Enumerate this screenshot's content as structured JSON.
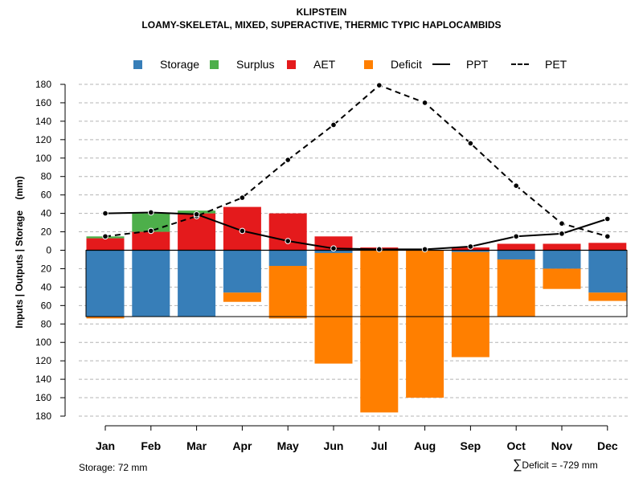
{
  "title": "KLIPSTEIN",
  "subtitle": "LOAMY-SKELETAL, MIXED, SUPERACTIVE, THERMIC TYPIC HAPLOCAMBIDS",
  "legend": [
    {
      "label": "Storage",
      "kind": "box",
      "color": "#377eb8"
    },
    {
      "label": "Surplus",
      "kind": "box",
      "color": "#4daf4a"
    },
    {
      "label": "AET",
      "kind": "box",
      "color": "#e41a1c"
    },
    {
      "label": "Deficit",
      "kind": "box",
      "color": "#ff7f00"
    },
    {
      "label": "PPT",
      "kind": "solid",
      "color": "#000000"
    },
    {
      "label": "PET",
      "kind": "dashed",
      "color": "#000000"
    }
  ],
  "footer": {
    "storage": "Storage: 72 mm",
    "deficit_symbol": "∑",
    "deficit": "Deficit = -729 mm"
  },
  "chart_data": {
    "type": "bar",
    "title": "KLIPSTEIN",
    "subtitle": "LOAMY-SKELETAL, MIXED, SUPERACTIVE, THERMIC TYPIC HAPLOCAMBIDS",
    "ylabel": "Inputs | Outputs | Storage    (mm)",
    "xlabel": "",
    "ylim": [
      -180,
      180
    ],
    "y_ticks": [
      180,
      160,
      140,
      120,
      100,
      80,
      60,
      40,
      20,
      0,
      -20,
      -40,
      -60,
      -80,
      -100,
      -120,
      -140,
      -160,
      -180
    ],
    "y_tick_labels": [
      "180",
      "160",
      "140",
      "120",
      "100",
      "80",
      "60",
      "40",
      "20",
      "0",
      "20",
      "40",
      "60",
      "80",
      "100",
      "120",
      "140",
      "160",
      "180"
    ],
    "grid": true,
    "storage_capacity": 72,
    "categories": [
      "Jan",
      "Feb",
      "Mar",
      "Apr",
      "May",
      "Jun",
      "Jul",
      "Aug",
      "Sep",
      "Oct",
      "Nov",
      "Dec"
    ],
    "series": [
      {
        "name": "AET",
        "color": "#e41a1c",
        "values": [
          13,
          20,
          40,
          47,
          40,
          15,
          3,
          0,
          3,
          7,
          7,
          8
        ]
      },
      {
        "name": "Surplus",
        "color": "#4daf4a",
        "values": [
          2,
          20,
          3,
          0,
          0,
          0,
          0,
          0,
          0,
          0,
          0,
          0
        ]
      },
      {
        "name": "Storage",
        "color": "#377eb8",
        "values": [
          72,
          72,
          72,
          46,
          17,
          3,
          0,
          0,
          2,
          10,
          20,
          46
        ]
      },
      {
        "name": "Deficit",
        "color": "#ff7f00",
        "values": [
          2,
          0,
          0,
          10,
          57,
          120,
          176,
          160,
          114,
          62,
          22,
          9
        ]
      },
      {
        "name": "PPT",
        "color": "#000000",
        "style": "solid",
        "values": [
          40,
          41,
          39,
          21,
          10,
          2,
          1,
          1,
          4,
          15,
          18,
          34
        ]
      },
      {
        "name": "PET",
        "color": "#000000",
        "style": "dashed",
        "values": [
          15,
          21,
          37,
          57,
          98,
          136,
          179,
          160,
          116,
          70,
          29,
          15
        ]
      }
    ]
  }
}
